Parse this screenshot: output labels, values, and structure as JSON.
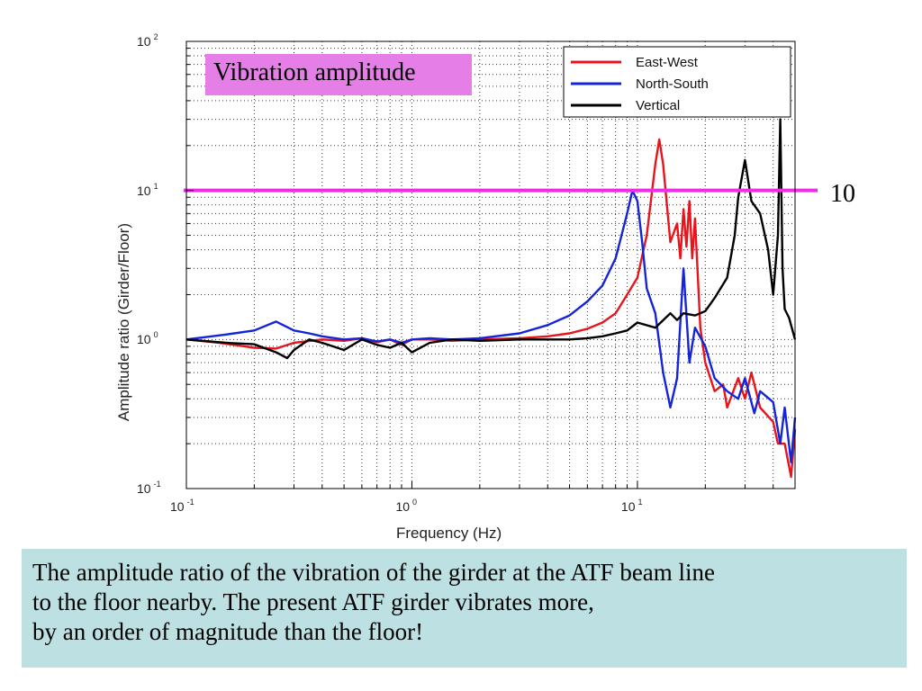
{
  "title_box": "Vibration amplitude",
  "reference_line": {
    "value": 10,
    "label": "10",
    "color": "#ee2ee6"
  },
  "caption": [
    "The amplitude ratio of the vibration of the girder at the ATF beam line",
    "to the floor nearby.  The present ATF girder vibrates more,",
    "by an order of magnitude than the floor!"
  ],
  "chart_data": {
    "type": "line",
    "title": "Vibration amplitude",
    "xlabel": "Frequency (Hz)",
    "ylabel": "Amplitude ratio (Girder/Floor)",
    "xscale": "log",
    "yscale": "log",
    "xlim": [
      0.1,
      50
    ],
    "ylim": [
      0.1,
      100
    ],
    "grid": true,
    "legend_position": "top-right",
    "x_ticks": [
      {
        "base": "10",
        "exp": "-1",
        "value": 0.1
      },
      {
        "base": "10",
        "exp": "0",
        "value": 1
      },
      {
        "base": "10",
        "exp": "1",
        "value": 10
      }
    ],
    "y_ticks": [
      {
        "base": "10",
        "exp": "-1",
        "value": 0.1
      },
      {
        "base": "10",
        "exp": "0",
        "value": 1
      },
      {
        "base": "10",
        "exp": "1",
        "value": 10
      },
      {
        "base": "10",
        "exp": "2",
        "value": 100
      }
    ],
    "series": [
      {
        "name": "East-West",
        "color": "#e8141c",
        "x": [
          0.1,
          0.14,
          0.2,
          0.25,
          0.3,
          0.4,
          0.5,
          0.6,
          0.7,
          0.8,
          0.9,
          1.0,
          1.2,
          1.5,
          2,
          3,
          4,
          5,
          6,
          7,
          8,
          9,
          10,
          11,
          12,
          12.5,
          13,
          14,
          15,
          15.5,
          16,
          16.5,
          17,
          17.5,
          18,
          19,
          20,
          22,
          24,
          25,
          28,
          30,
          32,
          35,
          40,
          42,
          45,
          48,
          50
        ],
        "y": [
          1.0,
          0.95,
          0.88,
          0.87,
          0.95,
          1.0,
          0.98,
          1.02,
          0.96,
          1.0,
          0.92,
          1.0,
          1.0,
          0.98,
          1.0,
          1.02,
          1.05,
          1.1,
          1.18,
          1.3,
          1.5,
          2.0,
          2.6,
          5.0,
          15.0,
          22.0,
          15.0,
          4.5,
          6.0,
          3.5,
          7.5,
          4.2,
          8.5,
          3.5,
          6.5,
          1.2,
          0.7,
          0.45,
          0.5,
          0.35,
          0.55,
          0.4,
          0.6,
          0.35,
          0.28,
          0.2,
          0.2,
          0.12,
          0.25
        ]
      },
      {
        "name": "North-South",
        "color": "#1424d8",
        "x": [
          0.1,
          0.15,
          0.2,
          0.25,
          0.3,
          0.35,
          0.4,
          0.5,
          0.6,
          0.7,
          0.8,
          0.9,
          1.0,
          1.2,
          1.5,
          2,
          3,
          4,
          5,
          6,
          7,
          8,
          8.5,
          9,
          9.5,
          10,
          10.5,
          11,
          12,
          13,
          14,
          15,
          16,
          17,
          18,
          20,
          22,
          25,
          28,
          30,
          33,
          35,
          40,
          43,
          45,
          48,
          50
        ],
        "y": [
          1.0,
          1.08,
          1.15,
          1.32,
          1.15,
          1.1,
          1.05,
          1.0,
          1.02,
          0.97,
          1.0,
          0.95,
          1.0,
          1.02,
          1.0,
          1.02,
          1.1,
          1.25,
          1.45,
          1.8,
          2.3,
          3.5,
          5.0,
          7.0,
          10.0,
          8.5,
          4.5,
          2.2,
          1.5,
          0.6,
          0.35,
          0.55,
          3.0,
          0.7,
          1.2,
          0.9,
          0.55,
          0.45,
          0.4,
          0.55,
          0.32,
          0.45,
          0.38,
          0.2,
          0.35,
          0.15,
          0.3
        ]
      },
      {
        "name": "Vertical",
        "color": "#000000",
        "x": [
          0.1,
          0.15,
          0.2,
          0.25,
          0.28,
          0.3,
          0.35,
          0.4,
          0.5,
          0.6,
          0.7,
          0.8,
          0.9,
          1.0,
          1.2,
          1.5,
          2,
          3,
          4,
          5,
          6,
          7,
          8,
          9,
          10,
          12,
          14,
          15,
          16,
          18,
          20,
          22,
          25,
          27,
          28,
          30,
          32,
          35,
          38,
          40,
          42,
          43,
          44,
          45,
          47,
          50
        ],
        "y": [
          1.0,
          0.95,
          0.93,
          0.82,
          0.75,
          0.85,
          1.0,
          0.95,
          0.85,
          1.0,
          0.92,
          0.88,
          0.95,
          0.82,
          0.95,
          1.0,
          0.98,
          1.0,
          1.0,
          1.0,
          1.02,
          1.05,
          1.1,
          1.15,
          1.3,
          1.2,
          1.5,
          1.35,
          1.5,
          1.45,
          1.55,
          1.9,
          2.6,
          5.0,
          9.0,
          16.0,
          8.5,
          7.0,
          4.0,
          2.0,
          5.0,
          30.0,
          3.0,
          1.6,
          1.4,
          1.0
        ]
      }
    ]
  }
}
